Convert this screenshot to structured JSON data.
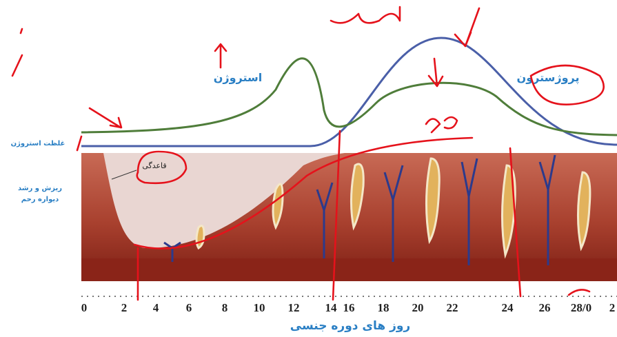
{
  "labels": {
    "estrogen": "استروژن",
    "progesterone": "پروژسترون",
    "estrogen_level": "غلظت استروژن",
    "menstruation": "قاعدگی",
    "wall_line1": "ریزش و رشد",
    "wall_line2": "دیواره رحم"
  },
  "axis": {
    "title": "روز های دوره جنسی",
    "ticks": [
      "0",
      "2",
      "4",
      "6",
      "8",
      "10",
      "12",
      "14",
      "16",
      "18",
      "20",
      "22",
      "24",
      "26",
      "28/0",
      "2"
    ]
  }
}
